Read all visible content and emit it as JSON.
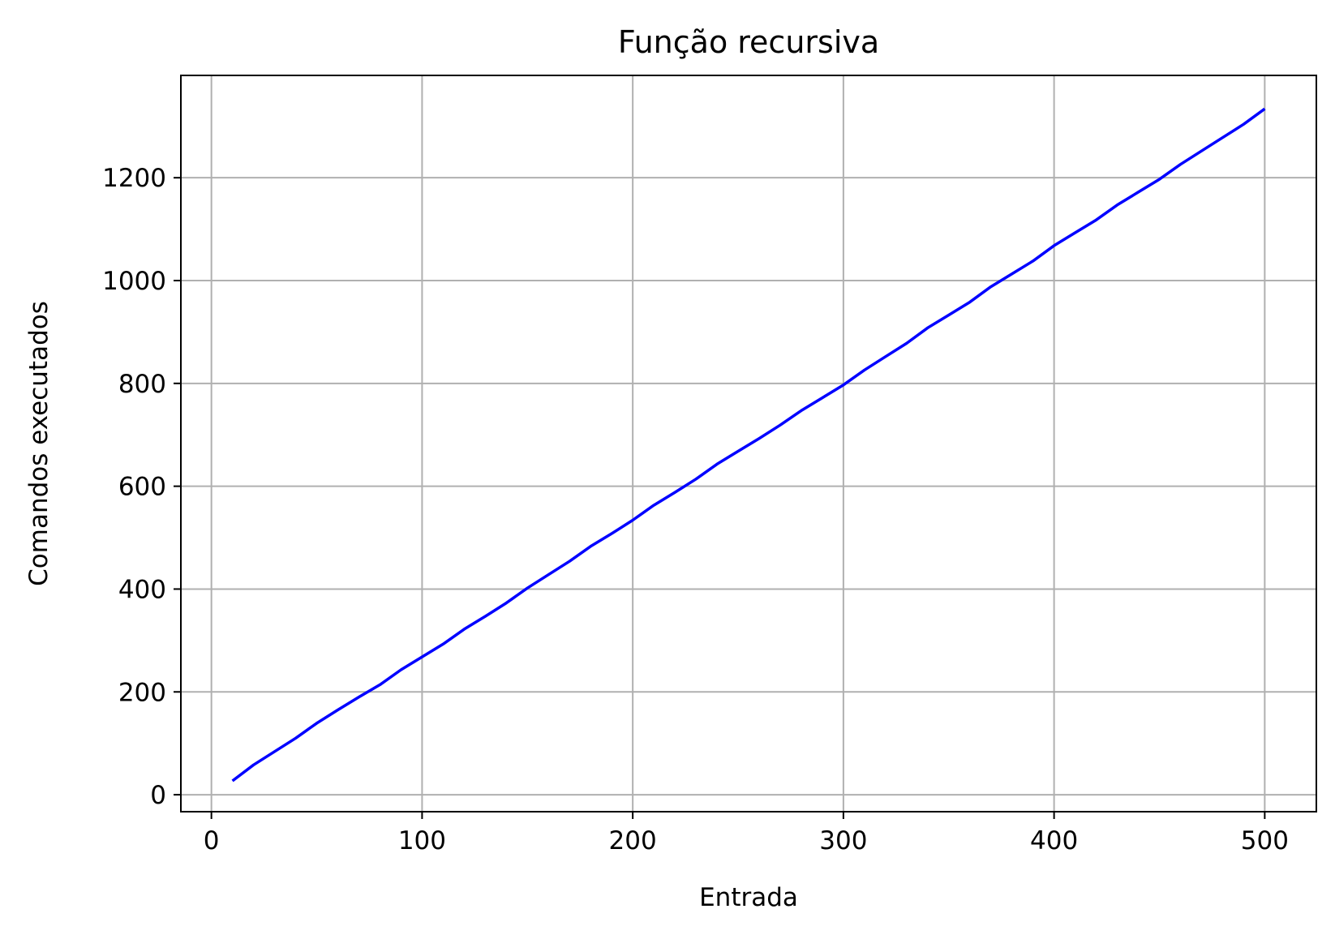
{
  "chart_data": {
    "type": "line",
    "title": "Função recursiva",
    "xlabel": "Entrada",
    "ylabel": "Comandos executados",
    "xlim": [
      -14.5,
      524.5
    ],
    "ylim": [
      -33,
      1399
    ],
    "xticks": [
      0,
      100,
      200,
      300,
      400,
      500
    ],
    "yticks": [
      0,
      200,
      400,
      600,
      800,
      1000,
      1200
    ],
    "grid": true,
    "legend": "none",
    "series": [
      {
        "name": "Função recursiva",
        "color": "#0000ff",
        "x": [
          10,
          20,
          30,
          40,
          50,
          60,
          70,
          80,
          90,
          100,
          110,
          120,
          130,
          140,
          150,
          160,
          170,
          180,
          190,
          200,
          210,
          220,
          230,
          240,
          250,
          260,
          270,
          280,
          290,
          300,
          310,
          320,
          330,
          340,
          350,
          360,
          370,
          380,
          390,
          400,
          410,
          420,
          430,
          440,
          450,
          460,
          470,
          480,
          490,
          500
        ],
        "y": [
          27,
          58,
          84,
          110,
          139,
          165,
          190,
          214,
          243,
          268,
          293,
          322,
          347,
          373,
          402,
          428,
          454,
          483,
          508,
          534,
          563,
          588,
          614,
          643,
          668,
          693,
          719,
          747,
          772,
          797,
          826,
          852,
          878,
          908,
          933,
          958,
          988,
          1013,
          1038,
          1068,
          1093,
          1118,
          1147,
          1172,
          1197,
          1226,
          1252,
          1278,
          1304,
          1334
        ]
      }
    ]
  }
}
